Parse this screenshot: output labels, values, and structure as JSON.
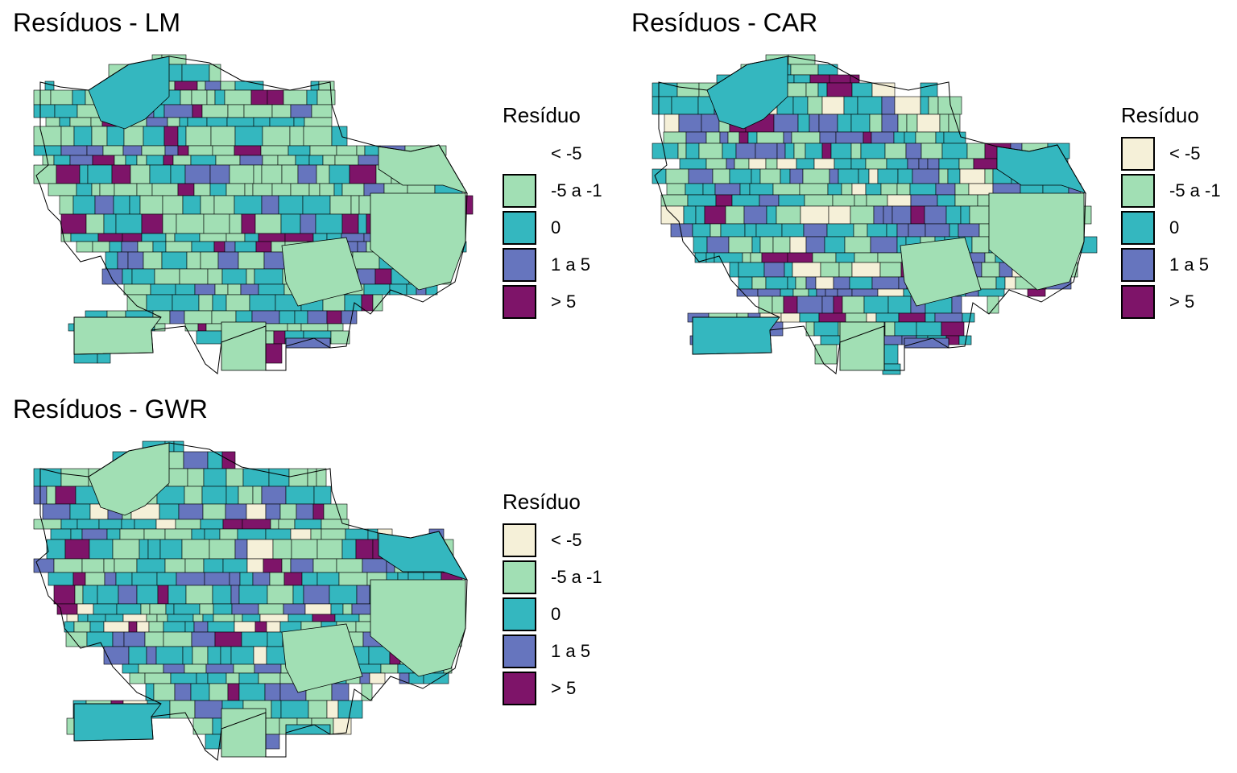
{
  "colors": {
    "lt_m5": "#f5f0d8",
    "m5_m1": "#a1dfb4",
    "zero": "#34b7bf",
    "p1_p5": "#6675be",
    "gt_p5": "#7e1469",
    "border": "#000000"
  },
  "legend_classes": [
    "< -5",
    "-5 a -1",
    "0",
    "1 a 5",
    "> 5"
  ],
  "legend_keys": [
    "lt_m5",
    "m5_m1",
    "zero",
    "p1_p5",
    "gt_p5"
  ],
  "panels": [
    {
      "title": "Resíduos - LM",
      "legend_title": "Resíduo",
      "legend": [
        {
          "label": "< -5",
          "color": "",
          "shown": false
        },
        {
          "label": "-5 a -1",
          "color": "#a1dfb4",
          "shown": true
        },
        {
          "label": "0",
          "color": "#34b7bf",
          "shown": true
        },
        {
          "label": "1 a 5",
          "color": "#6675be",
          "shown": true
        },
        {
          "label": "> 5",
          "color": "#7e1469",
          "shown": true
        }
      ],
      "weights": {
        "lt_m5": 0,
        "m5_m1": 50,
        "zero": 27,
        "p1_p5": 13,
        "gt_p5": 10
      },
      "seed": 11
    },
    {
      "title": "Resíduos - CAR",
      "legend_title": "Resíduo",
      "legend": [
        {
          "label": "< -5",
          "color": "#f5f0d8",
          "shown": true
        },
        {
          "label": "-5 a -1",
          "color": "#a1dfb4",
          "shown": true
        },
        {
          "label": "0",
          "color": "#34b7bf",
          "shown": true
        },
        {
          "label": "1 a 5",
          "color": "#6675be",
          "shown": true
        },
        {
          "label": "> 5",
          "color": "#7e1469",
          "shown": true
        }
      ],
      "weights": {
        "lt_m5": 6,
        "m5_m1": 34,
        "zero": 36,
        "p1_p5": 16,
        "gt_p5": 8
      },
      "seed": 23
    },
    {
      "title": "Resíduos - GWR",
      "legend_title": "Resíduo",
      "legend": [
        {
          "label": "< -5",
          "color": "#f5f0d8",
          "shown": true
        },
        {
          "label": "-5 a -1",
          "color": "#a1dfb4",
          "shown": true
        },
        {
          "label": "0",
          "color": "#34b7bf",
          "shown": true
        },
        {
          "label": "1 a 5",
          "color": "#6675be",
          "shown": true
        },
        {
          "label": "> 5",
          "color": "#7e1469",
          "shown": true
        }
      ],
      "weights": {
        "lt_m5": 6,
        "m5_m1": 32,
        "zero": 38,
        "p1_p5": 16,
        "gt_p5": 8
      },
      "seed": 37
    }
  ]
}
